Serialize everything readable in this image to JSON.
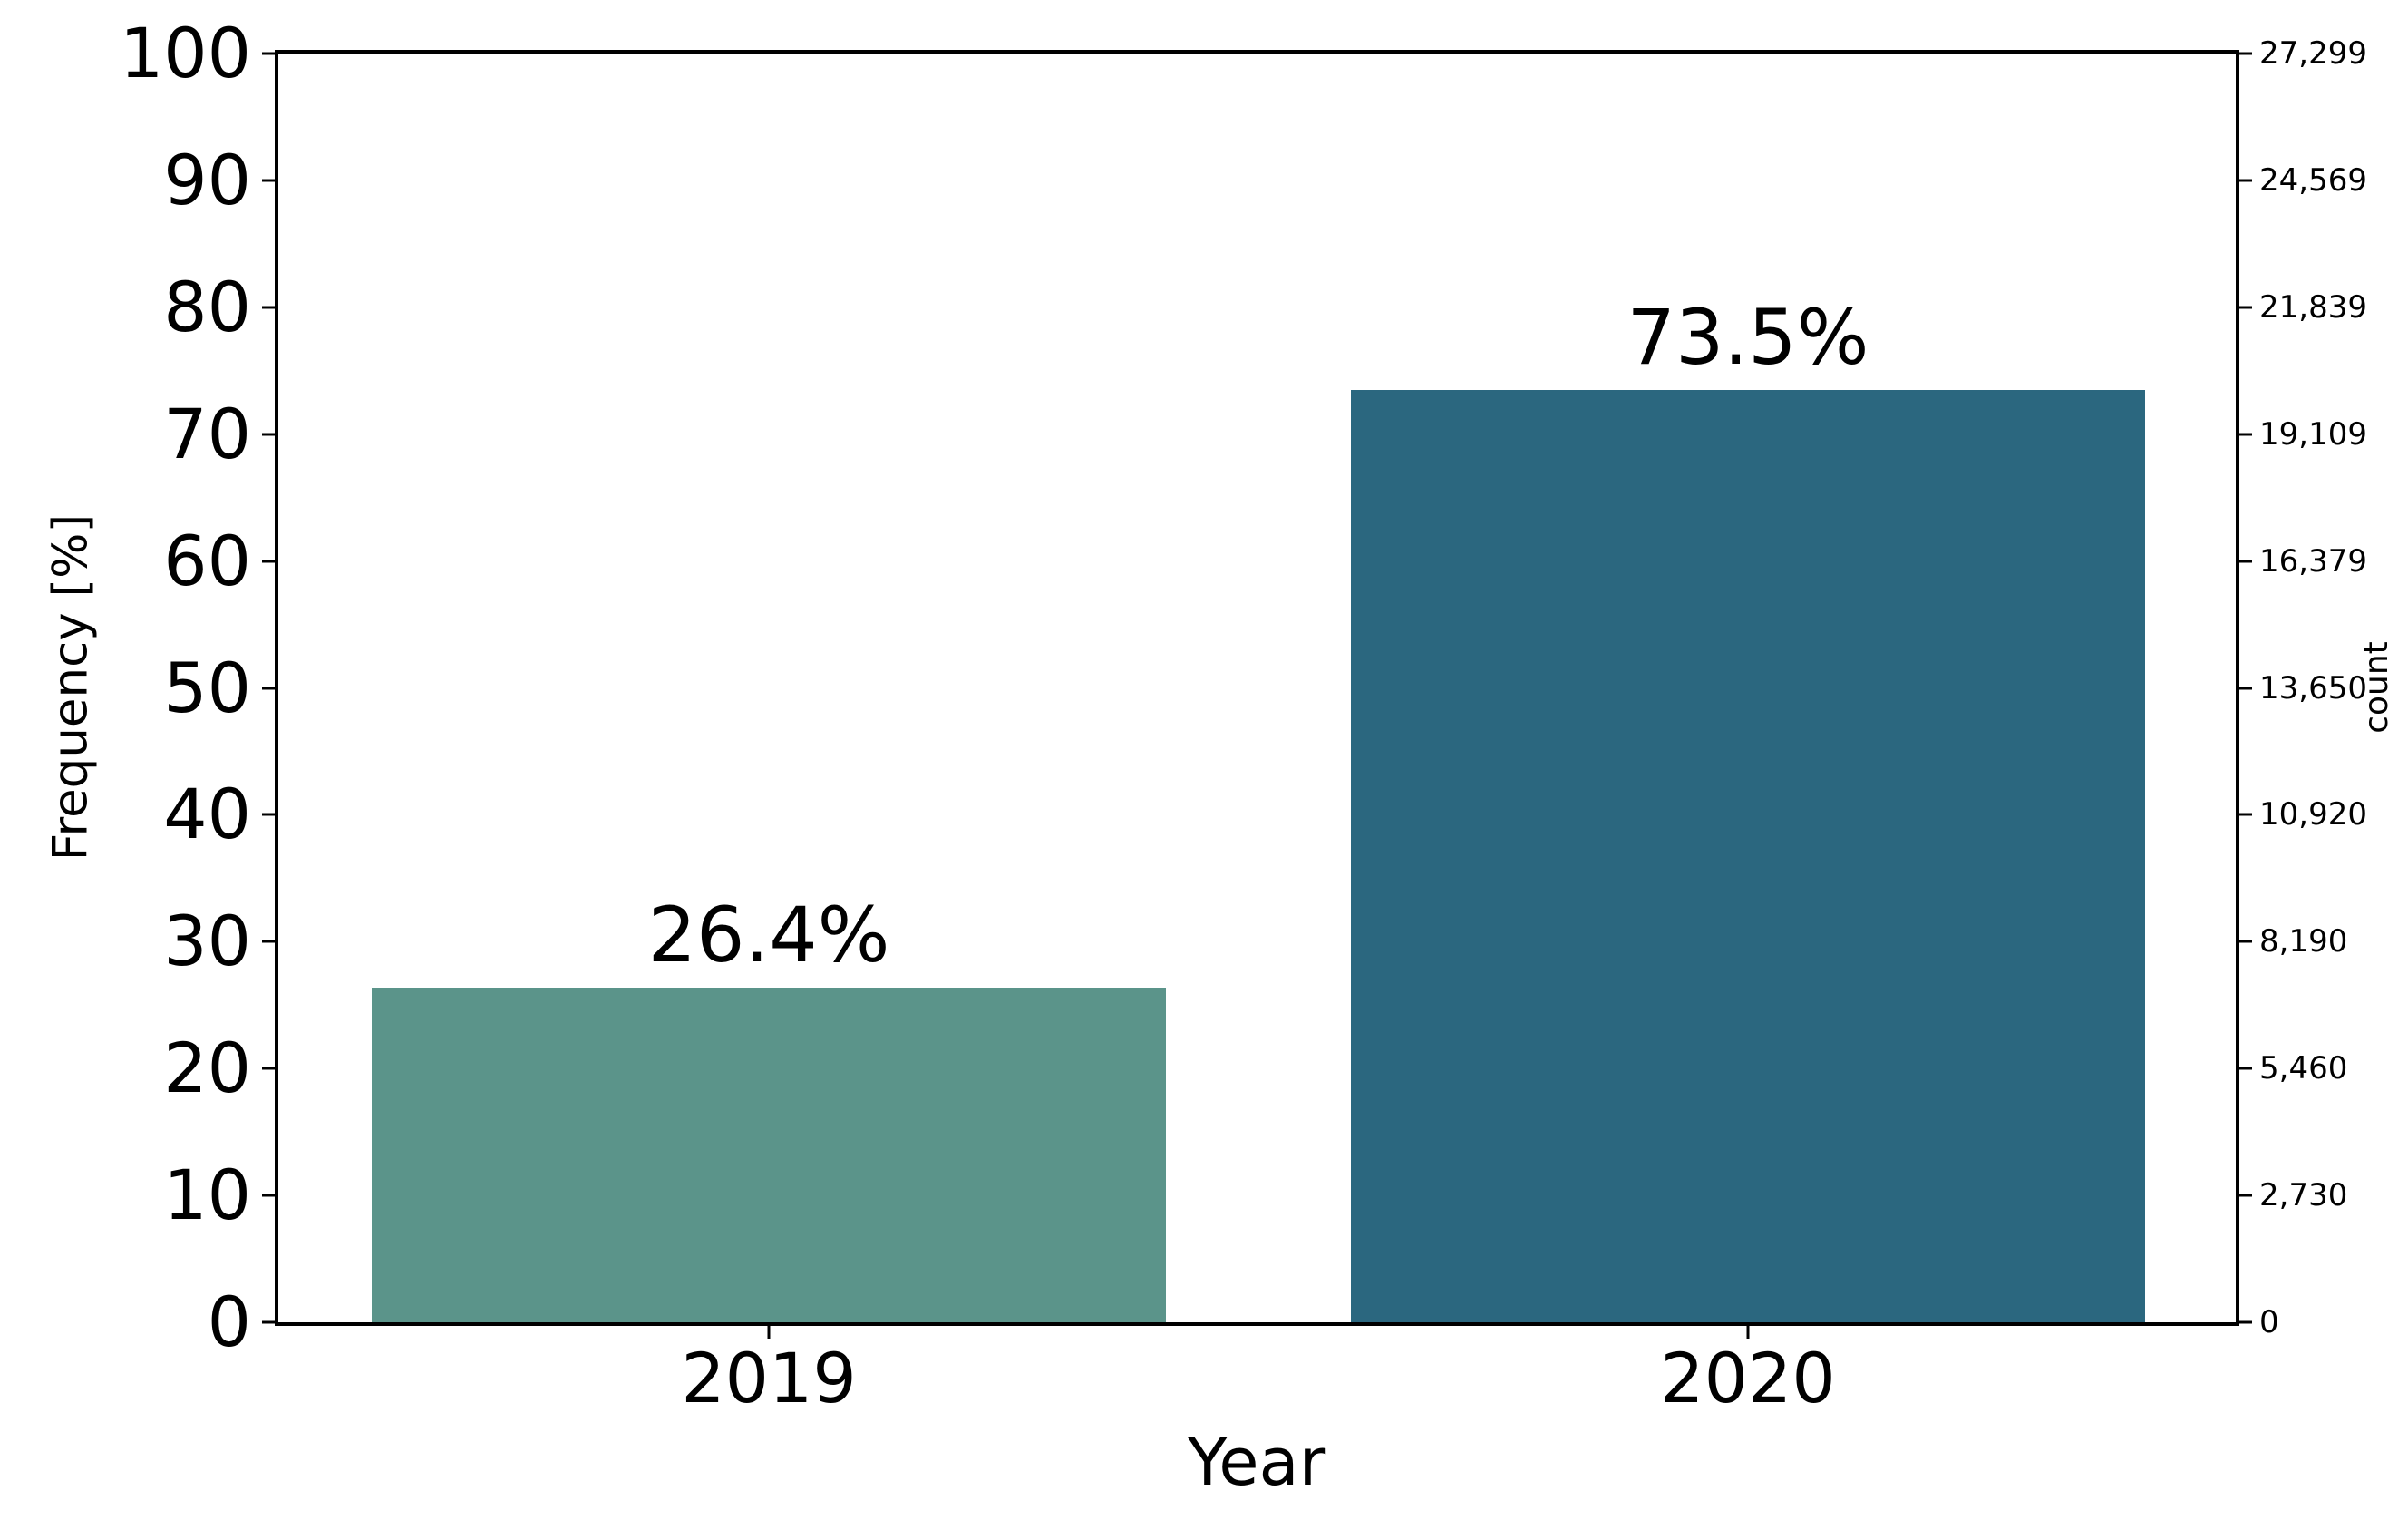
{
  "figure": {
    "background_color": "#ffffff",
    "text_color": "#000000",
    "axis_color": "#000000"
  },
  "chart_data": {
    "type": "bar",
    "title": "",
    "xlabel": "Year",
    "ylabel_left": "Frequency [%]",
    "ylabel_right": "count",
    "categories": [
      "2019",
      "2020"
    ],
    "series": [
      {
        "name": "Frequency [%]",
        "values": [
          26.4,
          73.5
        ]
      }
    ],
    "bars": [
      {
        "category": "2019",
        "value_pct": 26.4,
        "label": "26.4%",
        "color": "#5B948A",
        "center_pct": 25.06
      },
      {
        "category": "2020",
        "value_pct": 73.5,
        "label": "73.5%",
        "color": "#2B677F",
        "center_pct": 75.08
      }
    ],
    "y_left_axis": {
      "min": 0,
      "max": 100,
      "ticks": [
        {
          "label": "0",
          "pos": 0
        },
        {
          "label": "10",
          "pos": 10
        },
        {
          "label": "20",
          "pos": 20
        },
        {
          "label": "30",
          "pos": 30
        },
        {
          "label": "40",
          "pos": 40
        },
        {
          "label": "50",
          "pos": 50
        },
        {
          "label": "60",
          "pos": 60
        },
        {
          "label": "70",
          "pos": 70
        },
        {
          "label": "80",
          "pos": 80
        },
        {
          "label": "90",
          "pos": 90
        },
        {
          "label": "100",
          "pos": 100
        }
      ]
    },
    "y_right_axis": {
      "min": 0,
      "max": 27299,
      "ticks": [
        {
          "label": "0",
          "pos": 0
        },
        {
          "label": "2,730",
          "pos": 10
        },
        {
          "label": "5,460",
          "pos": 20
        },
        {
          "label": "8,190",
          "pos": 30
        },
        {
          "label": "10,920",
          "pos": 40
        },
        {
          "label": "13,650",
          "pos": 50
        },
        {
          "label": "16,379",
          "pos": 60
        },
        {
          "label": "19,109",
          "pos": 70
        },
        {
          "label": "21,839",
          "pos": 80
        },
        {
          "label": "24,569",
          "pos": 90
        },
        {
          "label": "27,299",
          "pos": 100
        }
      ]
    },
    "grid": false,
    "legend": null
  }
}
